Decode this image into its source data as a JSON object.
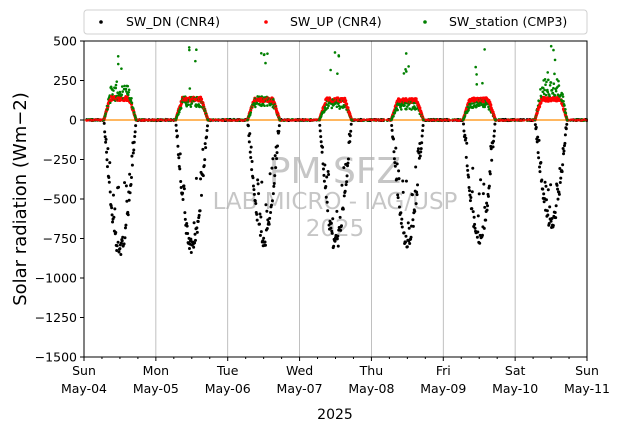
{
  "chart_data": {
    "type": "scatter",
    "ylabel": "Solar radiation (Wm−2)",
    "xlabel": "2025",
    "ylim": [
      -1500,
      500
    ],
    "xlim": [
      "2025-05-04",
      "2025-05-11"
    ],
    "yticks": [
      500,
      250,
      0,
      -250,
      -500,
      -750,
      -1000,
      -1250,
      -1500
    ],
    "ytick_labels": [
      "500",
      "250",
      "0",
      "−250",
      "−500",
      "−750",
      "−1000",
      "−1250",
      "−1500"
    ],
    "xticks": [
      {
        "day": "Sun",
        "date": "May-04"
      },
      {
        "day": "Mon",
        "date": "May-05"
      },
      {
        "day": "Tue",
        "date": "May-06"
      },
      {
        "day": "Wed",
        "date": "May-07"
      },
      {
        "day": "Thu",
        "date": "May-08"
      },
      {
        "day": "Fri",
        "date": "May-09"
      },
      {
        "day": "Sat",
        "date": "May-10"
      },
      {
        "day": "Sun",
        "date": "May-11"
      }
    ],
    "grid": "vertical",
    "legend_position": "top",
    "series": [
      {
        "name": "SW_DN (CNR4)",
        "color": "#000000",
        "daily_minimum": [
          -870,
          -840,
          -810,
          -830,
          -820,
          -790,
          -690
        ]
      },
      {
        "name": "SW_UP (CNR4)",
        "color": "#ff0000",
        "daily_peak": [
          150,
          145,
          140,
          140,
          135,
          140,
          145
        ]
      },
      {
        "name": "SW_station (CMP3)",
        "color": "#008000",
        "daily_peak": [
          220,
          150,
          150,
          130,
          120,
          130,
          260
        ],
        "daily_spike_max": [
          430,
          470,
          430,
          480,
          450,
          460,
          470
        ]
      }
    ],
    "watermark": [
      "PM SFZ",
      "LAB MICRO - IAG/USP",
      "2025"
    ]
  }
}
